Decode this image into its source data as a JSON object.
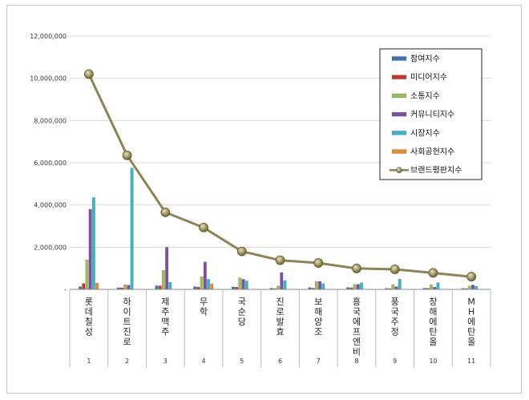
{
  "chart_data": {
    "type": "bar",
    "categories": [
      "1",
      "2",
      "3",
      "4",
      "5",
      "6",
      "7",
      "8",
      "9",
      "10",
      "11"
    ],
    "category_labels": [
      "롯데칠성",
      "하이트진로",
      "제주맥주",
      "무학",
      "국순당",
      "진로발효",
      "보해양조",
      "흥국에프엔비",
      "풍국주정",
      "창해에탄올",
      "MH에탄올"
    ],
    "ylim": [
      0,
      12000000
    ],
    "yticks": [
      0,
      2000000,
      4000000,
      6000000,
      8000000,
      10000000,
      12000000
    ],
    "ytick_labels": [
      "-",
      "2,000,000",
      "4,000,000",
      "6,000,000",
      "8,000,000",
      "10,000,000",
      "12,000,000"
    ],
    "grid": true,
    "legend_position": "top-right",
    "series": [
      {
        "name": "참여지수",
        "color": "#3f6fb5",
        "values": [
          130000,
          80000,
          170000,
          130000,
          120000,
          60000,
          90000,
          90000,
          50000,
          60000,
          50000
        ]
      },
      {
        "name": "미디어지수",
        "color": "#c0392b",
        "values": [
          280000,
          80000,
          170000,
          110000,
          110000,
          40000,
          60000,
          80000,
          40000,
          50000,
          40000
        ]
      },
      {
        "name": "소통지수",
        "color": "#9bbb59",
        "values": [
          1400000,
          220000,
          900000,
          600000,
          550000,
          160000,
          380000,
          240000,
          230000,
          220000,
          160000
        ]
      },
      {
        "name": "커뮤니티지수",
        "color": "#7d4fa8",
        "values": [
          3800000,
          200000,
          2000000,
          1300000,
          480000,
          800000,
          380000,
          240000,
          130000,
          110000,
          210000
        ]
      },
      {
        "name": "시장지수",
        "color": "#3cb4c8",
        "values": [
          4350000,
          5750000,
          340000,
          480000,
          400000,
          420000,
          280000,
          320000,
          490000,
          320000,
          150000
        ]
      },
      {
        "name": "사회공헌지수",
        "color": "#e88a2e",
        "values": [
          300000,
          0,
          0,
          260000,
          0,
          0,
          0,
          0,
          0,
          0,
          0
        ]
      }
    ],
    "line_series": {
      "name": "브랜드평판지수",
      "color": "#8c8452",
      "values": [
        10200000,
        6350000,
        3650000,
        2930000,
        1800000,
        1380000,
        1250000,
        990000,
        950000,
        780000,
        600000
      ]
    }
  }
}
